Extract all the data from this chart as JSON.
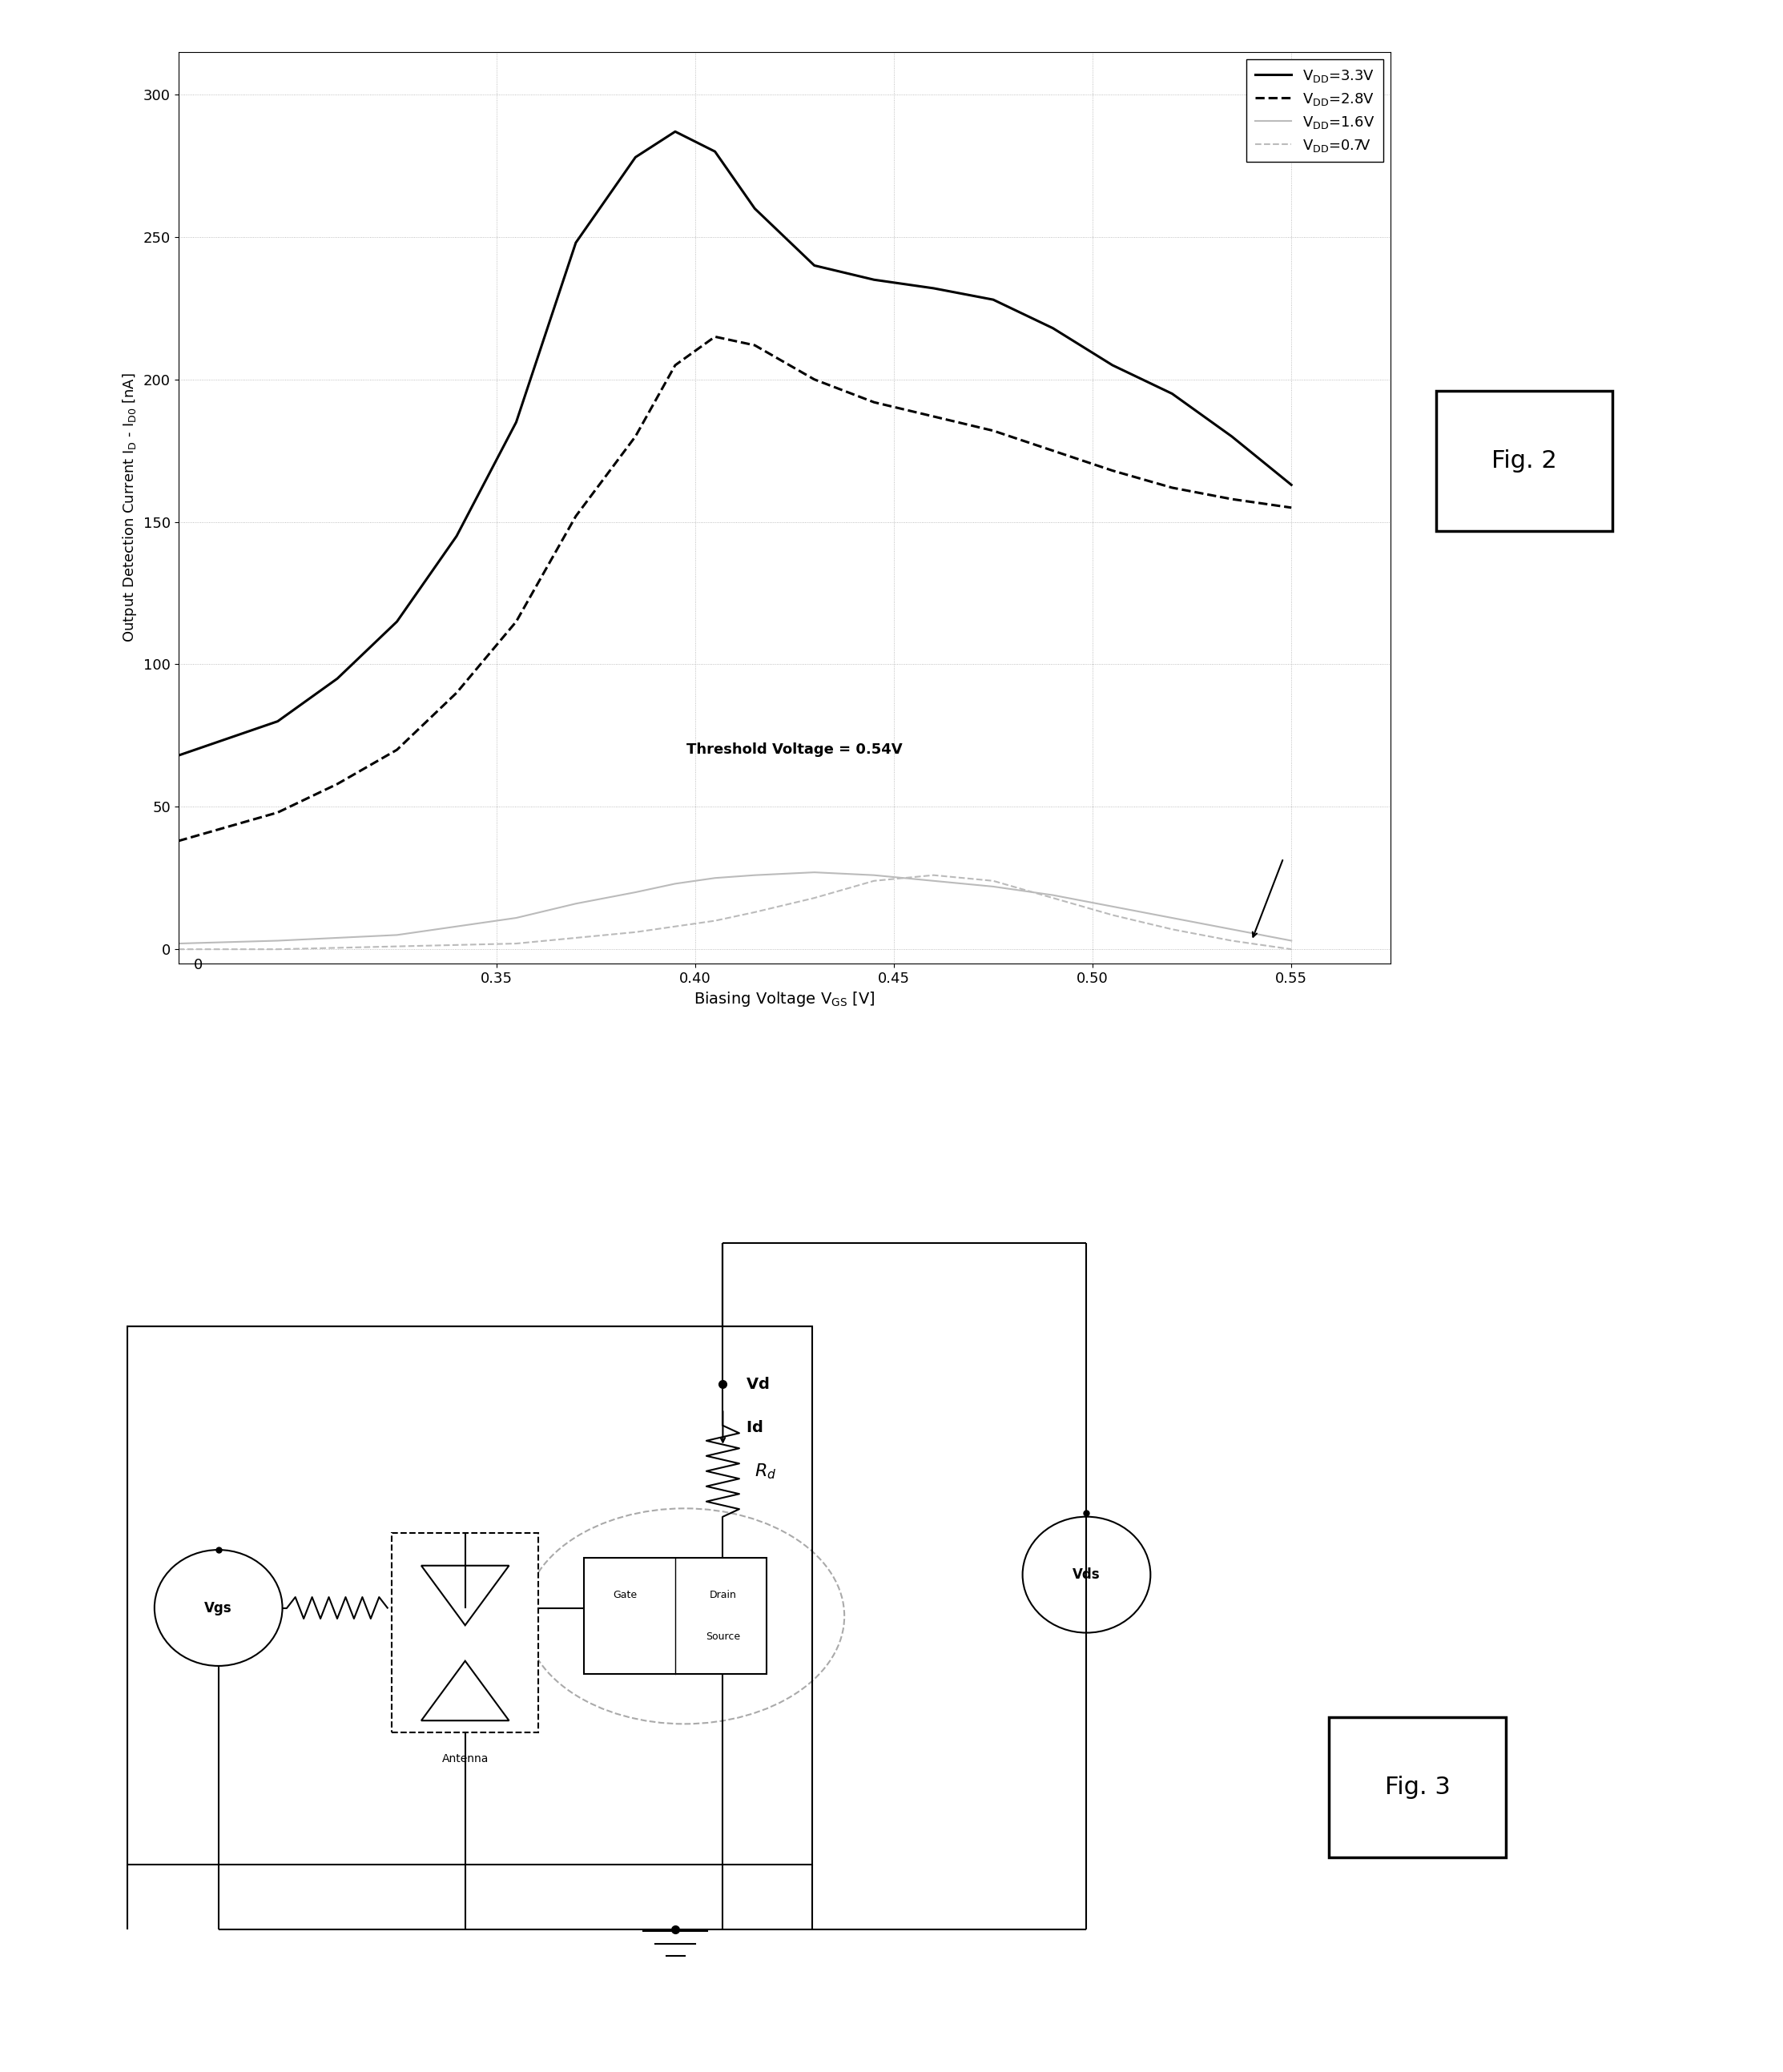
{
  "fig2": {
    "xlabel": "Biasing Voltage V    [V]",
    "ylabel": "Output Detection Current I    - I    [nA]",
    "threshold_text": "Threshold Voltage = 0.54V",
    "xlim": [
      0.27,
      0.575
    ],
    "ylim": [
      -5,
      315
    ],
    "xticks": [
      0.35,
      0.4,
      0.45,
      0.5,
      0.55
    ],
    "yticks": [
      0,
      50,
      100,
      150,
      200,
      250,
      300
    ],
    "curves": {
      "vdd_3p3": {
        "label": "V   =3.3V",
        "linestyle": "solid",
        "linewidth": 2.2,
        "color": "#000000",
        "x": [
          0.27,
          0.295,
          0.31,
          0.325,
          0.34,
          0.355,
          0.37,
          0.385,
          0.395,
          0.405,
          0.415,
          0.43,
          0.445,
          0.46,
          0.475,
          0.49,
          0.505,
          0.52,
          0.535,
          0.55
        ],
        "y": [
          68,
          80,
          95,
          115,
          145,
          185,
          248,
          278,
          287,
          280,
          260,
          240,
          235,
          232,
          228,
          218,
          205,
          195,
          180,
          163
        ]
      },
      "vdd_2p8": {
        "label": "V   =2.8V",
        "linestyle": "dashed",
        "linewidth": 2.2,
        "color": "#000000",
        "x": [
          0.27,
          0.295,
          0.31,
          0.325,
          0.34,
          0.355,
          0.37,
          0.385,
          0.395,
          0.405,
          0.415,
          0.43,
          0.445,
          0.46,
          0.475,
          0.49,
          0.505,
          0.52,
          0.535,
          0.55
        ],
        "y": [
          38,
          48,
          58,
          70,
          90,
          115,
          152,
          180,
          205,
          215,
          212,
          200,
          192,
          187,
          182,
          175,
          168,
          162,
          158,
          155
        ]
      },
      "vdd_1p6": {
        "label": "V   =1.6V",
        "linestyle": "solid",
        "linewidth": 1.5,
        "color": "#bbbbbb",
        "x": [
          0.27,
          0.295,
          0.31,
          0.325,
          0.34,
          0.355,
          0.37,
          0.385,
          0.395,
          0.405,
          0.415,
          0.43,
          0.445,
          0.46,
          0.475,
          0.49,
          0.505,
          0.52,
          0.535,
          0.55
        ],
        "y": [
          2,
          3,
          4,
          5,
          8,
          11,
          16,
          20,
          23,
          25,
          26,
          27,
          26,
          24,
          22,
          19,
          15,
          11,
          7,
          3
        ]
      },
      "vdd_0p7": {
        "label": "V   =0.7V",
        "linestyle": "dashed",
        "linewidth": 1.5,
        "color": "#bbbbbb",
        "x": [
          0.27,
          0.295,
          0.31,
          0.325,
          0.34,
          0.355,
          0.37,
          0.385,
          0.395,
          0.405,
          0.415,
          0.43,
          0.445,
          0.46,
          0.475,
          0.49,
          0.505,
          0.52,
          0.535,
          0.55
        ],
        "y": [
          0,
          0,
          0.5,
          1,
          1.5,
          2,
          4,
          6,
          8,
          10,
          13,
          18,
          24,
          26,
          24,
          18,
          12,
          7,
          3,
          0
        ]
      }
    },
    "legend": {
      "labels": [
        "V   =3.3V",
        "V   =2.8V",
        "V   =1.6V",
        "V   =0.7V"
      ],
      "sub_labels": [
        "DD",
        "DD",
        "DD",
        "DD"
      ],
      "linestyles": [
        "solid",
        "dashed",
        "solid",
        "dashed"
      ],
      "linewidths": [
        2.2,
        2.2,
        1.5,
        1.5
      ],
      "colors": [
        "#000000",
        "#000000",
        "#bbbbbb",
        "#bbbbbb"
      ]
    }
  }
}
